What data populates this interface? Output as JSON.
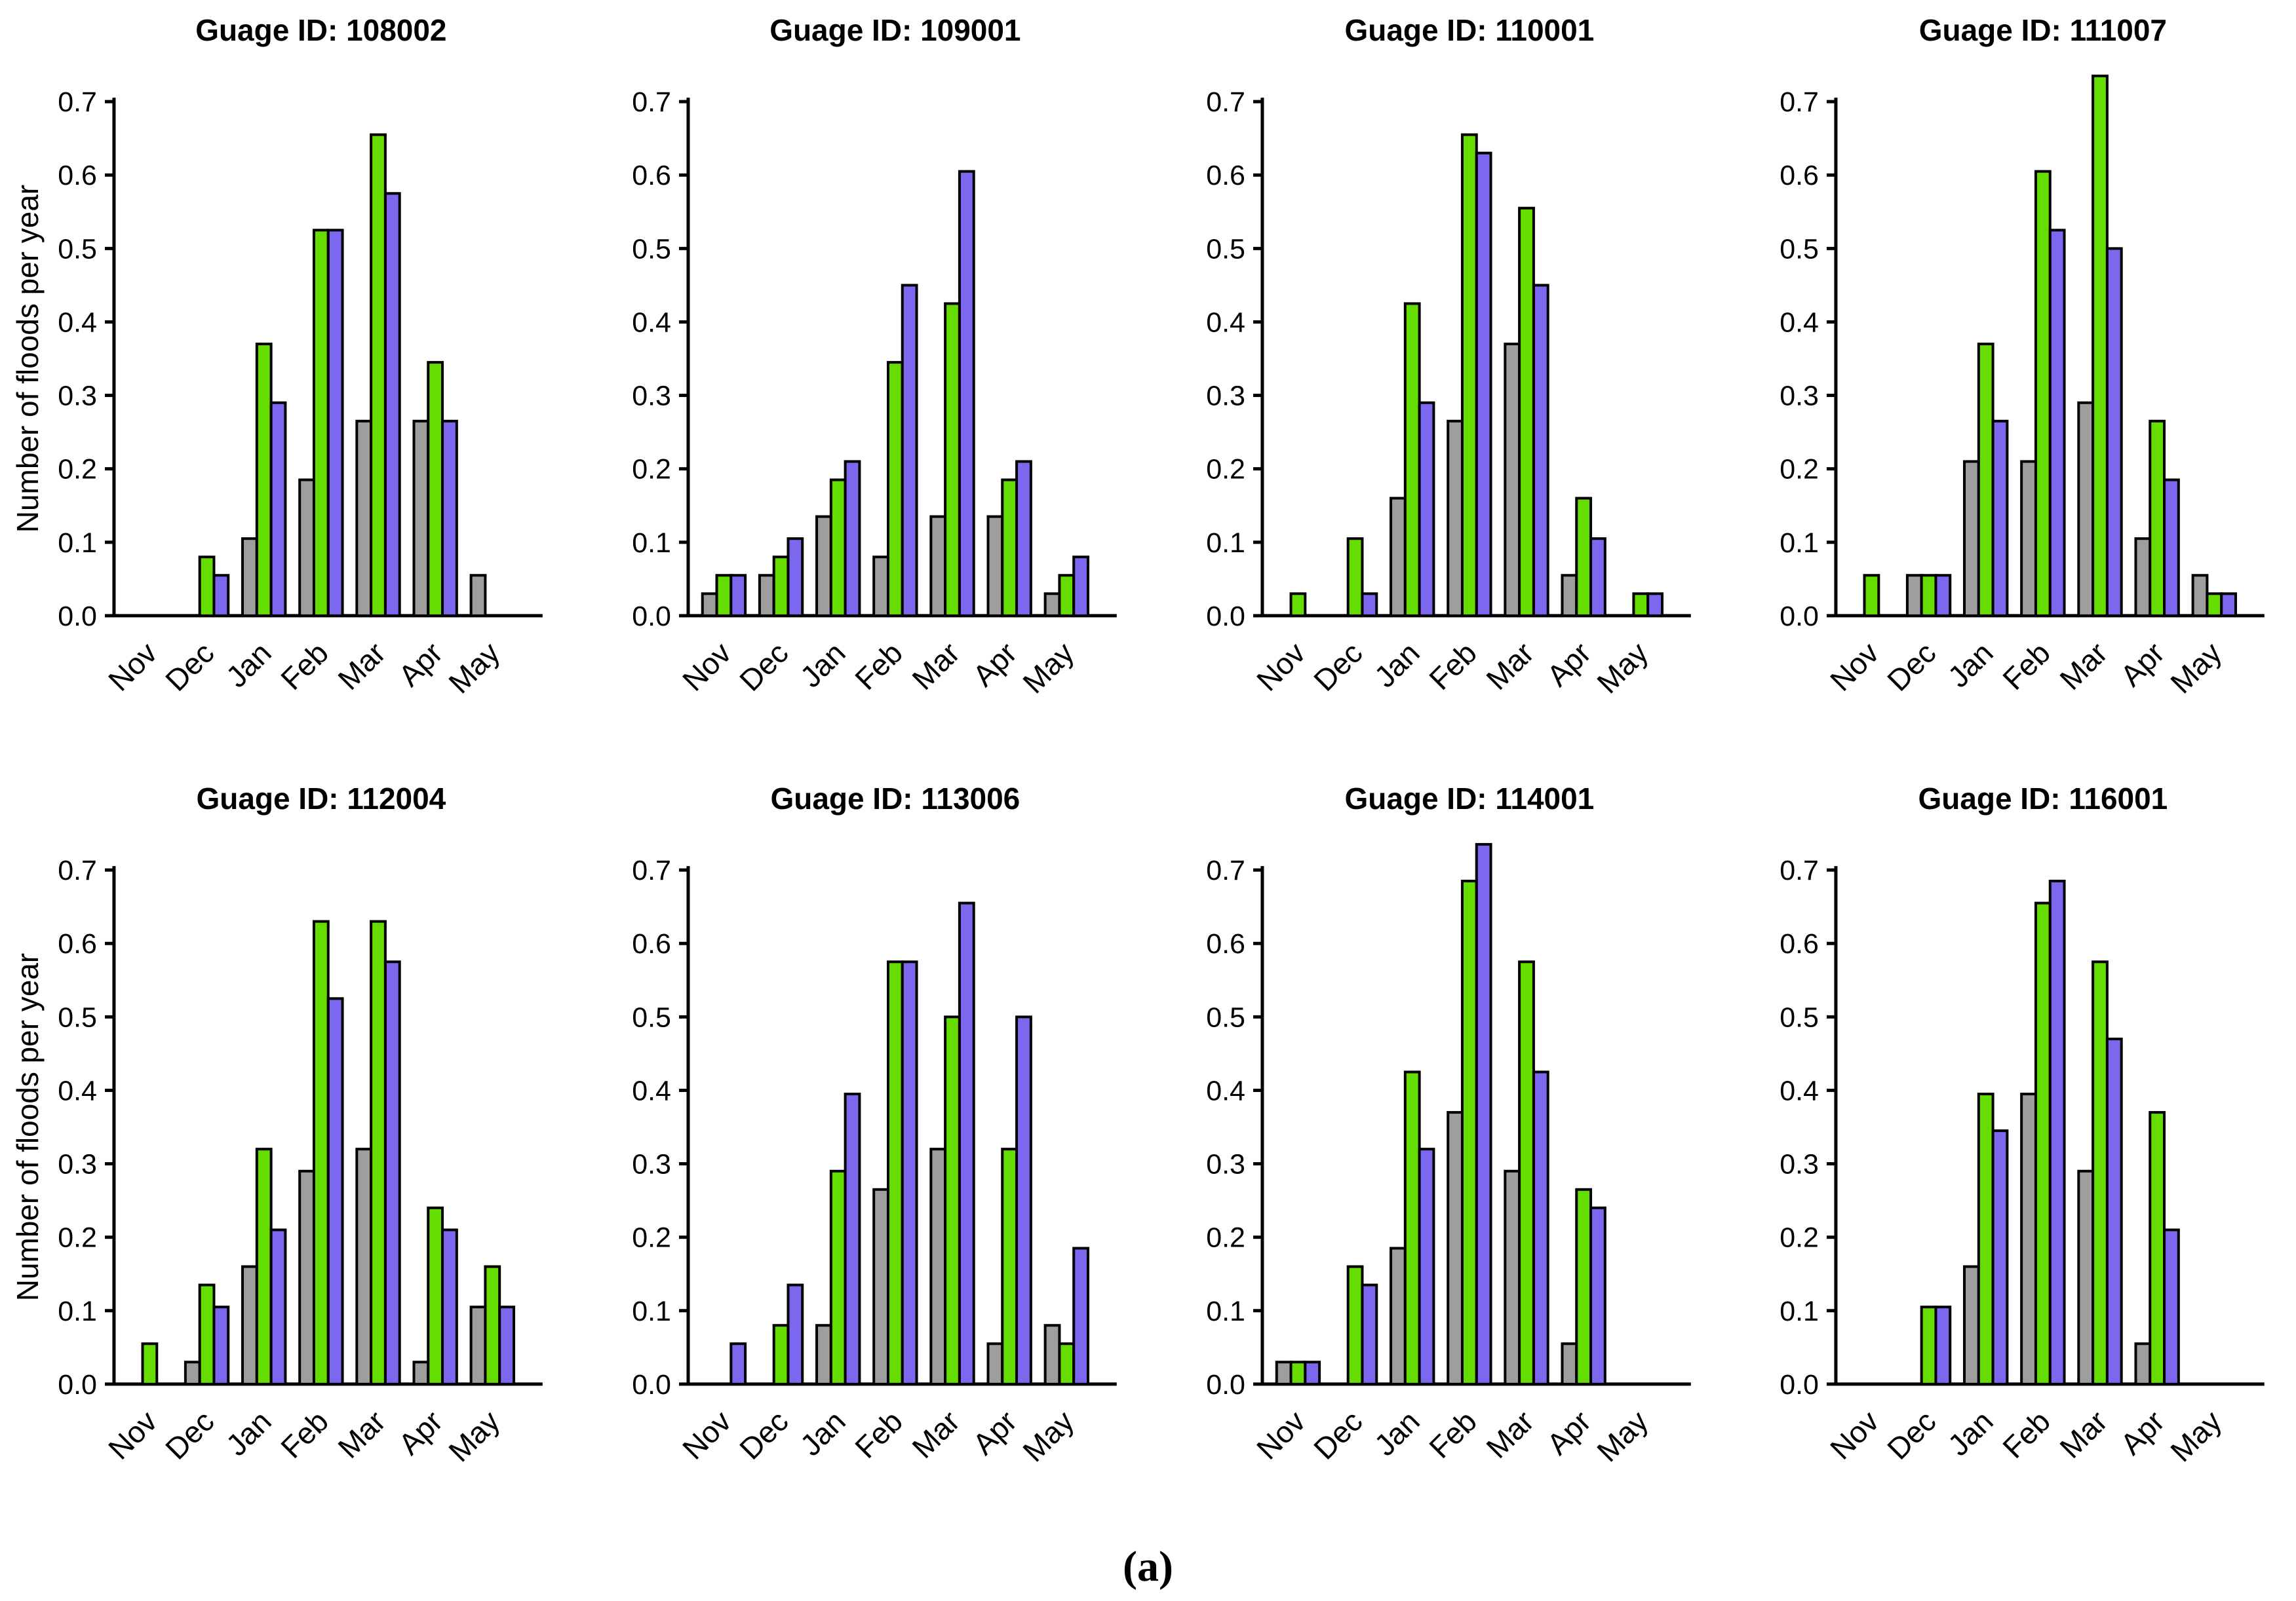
{
  "figure": {
    "caption": "(a)",
    "ylabel": "Number of floods per year",
    "ytick_labels": [
      "0.0",
      "0.1",
      "0.2",
      "0.3",
      "0.4",
      "0.5",
      "0.6",
      "0.7"
    ],
    "colors": {
      "gray": "#9E9E9E",
      "green": "#66DD00",
      "purple": "#7B68EE",
      "outline": "#000000"
    }
  },
  "chart_data": [
    {
      "type": "bar",
      "title": "Guage ID: 108002",
      "ylabel": "Number of floods per year",
      "categories": [
        "Nov",
        "Dec",
        "Jan",
        "Feb",
        "Mar",
        "Apr",
        "May"
      ],
      "ylim": [
        0,
        0.7
      ],
      "ytick_step": 0.1,
      "grid": false,
      "legend": "none",
      "series": [
        {
          "name": "gray",
          "color": "#9E9E9E",
          "values": [
            0,
            0,
            0.105,
            0.185,
            0.265,
            0.265,
            0.055
          ]
        },
        {
          "name": "green",
          "color": "#66DD00",
          "values": [
            0,
            0.08,
            0.37,
            0.525,
            0.655,
            0.345,
            0
          ]
        },
        {
          "name": "purple",
          "color": "#7B68EE",
          "values": [
            0,
            0.055,
            0.29,
            0.525,
            0.575,
            0.265,
            0
          ]
        }
      ]
    },
    {
      "type": "bar",
      "title": "Guage ID: 109001",
      "ylabel": "",
      "categories": [
        "Nov",
        "Dec",
        "Jan",
        "Feb",
        "Mar",
        "Apr",
        "May"
      ],
      "ylim": [
        0,
        0.7
      ],
      "ytick_step": 0.1,
      "grid": false,
      "legend": "none",
      "series": [
        {
          "name": "gray",
          "color": "#9E9E9E",
          "values": [
            0.03,
            0.055,
            0.135,
            0.08,
            0.135,
            0.135,
            0.03
          ]
        },
        {
          "name": "green",
          "color": "#66DD00",
          "values": [
            0.055,
            0.08,
            0.185,
            0.345,
            0.425,
            0.185,
            0.055
          ]
        },
        {
          "name": "purple",
          "color": "#7B68EE",
          "values": [
            0.055,
            0.105,
            0.21,
            0.45,
            0.605,
            0.21,
            0.08
          ]
        }
      ]
    },
    {
      "type": "bar",
      "title": "Guage ID: 110001",
      "ylabel": "",
      "categories": [
        "Nov",
        "Dec",
        "Jan",
        "Feb",
        "Mar",
        "Apr",
        "May"
      ],
      "ylim": [
        0,
        0.7
      ],
      "ytick_step": 0.1,
      "grid": false,
      "legend": "none",
      "series": [
        {
          "name": "gray",
          "color": "#9E9E9E",
          "values": [
            0,
            0,
            0.16,
            0.265,
            0.37,
            0.055,
            0
          ]
        },
        {
          "name": "green",
          "color": "#66DD00",
          "values": [
            0.03,
            0.105,
            0.425,
            0.655,
            0.555,
            0.16,
            0.03
          ]
        },
        {
          "name": "purple",
          "color": "#7B68EE",
          "values": [
            0,
            0.03,
            0.29,
            0.63,
            0.45,
            0.105,
            0.03
          ]
        }
      ]
    },
    {
      "type": "bar",
      "title": "Guage ID: 111007",
      "ylabel": "",
      "categories": [
        "Nov",
        "Dec",
        "Jan",
        "Feb",
        "Mar",
        "Apr",
        "May"
      ],
      "ylim": [
        0,
        0.7
      ],
      "ytick_step": 0.1,
      "grid": false,
      "legend": "none",
      "series": [
        {
          "name": "gray",
          "color": "#9E9E9E",
          "values": [
            0,
            0.055,
            0.21,
            0.21,
            0.29,
            0.105,
            0.055
          ]
        },
        {
          "name": "green",
          "color": "#66DD00",
          "values": [
            0.055,
            0.055,
            0.37,
            0.605,
            0.735,
            0.265,
            0.03
          ]
        },
        {
          "name": "purple",
          "color": "#7B68EE",
          "values": [
            0,
            0.055,
            0.265,
            0.525,
            0.5,
            0.185,
            0.03
          ]
        }
      ]
    },
    {
      "type": "bar",
      "title": "Guage ID: 112004",
      "ylabel": "Number of floods per year",
      "categories": [
        "Nov",
        "Dec",
        "Jan",
        "Feb",
        "Mar",
        "Apr",
        "May"
      ],
      "ylim": [
        0,
        0.7
      ],
      "ytick_step": 0.1,
      "grid": false,
      "legend": "none",
      "series": [
        {
          "name": "gray",
          "color": "#9E9E9E",
          "values": [
            0,
            0.03,
            0.16,
            0.29,
            0.32,
            0.03,
            0.105
          ]
        },
        {
          "name": "green",
          "color": "#66DD00",
          "values": [
            0.055,
            0.135,
            0.32,
            0.63,
            0.63,
            0.24,
            0.16
          ]
        },
        {
          "name": "purple",
          "color": "#7B68EE",
          "values": [
            0,
            0.105,
            0.21,
            0.525,
            0.575,
            0.21,
            0.105
          ]
        }
      ]
    },
    {
      "type": "bar",
      "title": "Guage ID: 113006",
      "ylabel": "",
      "categories": [
        "Nov",
        "Dec",
        "Jan",
        "Feb",
        "Mar",
        "Apr",
        "May"
      ],
      "ylim": [
        0,
        0.7
      ],
      "ytick_step": 0.1,
      "grid": false,
      "legend": "none",
      "series": [
        {
          "name": "gray",
          "color": "#9E9E9E",
          "values": [
            0,
            0,
            0.08,
            0.265,
            0.32,
            0.055,
            0.08
          ]
        },
        {
          "name": "green",
          "color": "#66DD00",
          "values": [
            0,
            0.08,
            0.29,
            0.575,
            0.5,
            0.32,
            0.055
          ]
        },
        {
          "name": "purple",
          "color": "#7B68EE",
          "values": [
            0.055,
            0.135,
            0.395,
            0.575,
            0.655,
            0.5,
            0.185
          ]
        }
      ]
    },
    {
      "type": "bar",
      "title": "Guage ID: 114001",
      "ylabel": "",
      "categories": [
        "Nov",
        "Dec",
        "Jan",
        "Feb",
        "Mar",
        "Apr",
        "May"
      ],
      "ylim": [
        0,
        0.7
      ],
      "ytick_step": 0.1,
      "grid": false,
      "legend": "none",
      "series": [
        {
          "name": "gray",
          "color": "#9E9E9E",
          "values": [
            0.03,
            0,
            0.185,
            0.37,
            0.29,
            0.055,
            0
          ]
        },
        {
          "name": "green",
          "color": "#66DD00",
          "values": [
            0.03,
            0.16,
            0.425,
            0.685,
            0.575,
            0.265,
            0
          ]
        },
        {
          "name": "purple",
          "color": "#7B68EE",
          "values": [
            0.03,
            0.135,
            0.32,
            0.735,
            0.425,
            0.24,
            0
          ]
        }
      ]
    },
    {
      "type": "bar",
      "title": "Guage ID: 116001",
      "ylabel": "",
      "categories": [
        "Nov",
        "Dec",
        "Jan",
        "Feb",
        "Mar",
        "Apr",
        "May"
      ],
      "ylim": [
        0,
        0.7
      ],
      "ytick_step": 0.1,
      "grid": false,
      "legend": "none",
      "series": [
        {
          "name": "gray",
          "color": "#9E9E9E",
          "values": [
            0,
            0,
            0.16,
            0.395,
            0.29,
            0.055,
            0
          ]
        },
        {
          "name": "green",
          "color": "#66DD00",
          "values": [
            0,
            0.105,
            0.395,
            0.655,
            0.575,
            0.37,
            0
          ]
        },
        {
          "name": "purple",
          "color": "#7B68EE",
          "values": [
            0,
            0.105,
            0.345,
            0.685,
            0.47,
            0.21,
            0
          ]
        }
      ]
    }
  ]
}
